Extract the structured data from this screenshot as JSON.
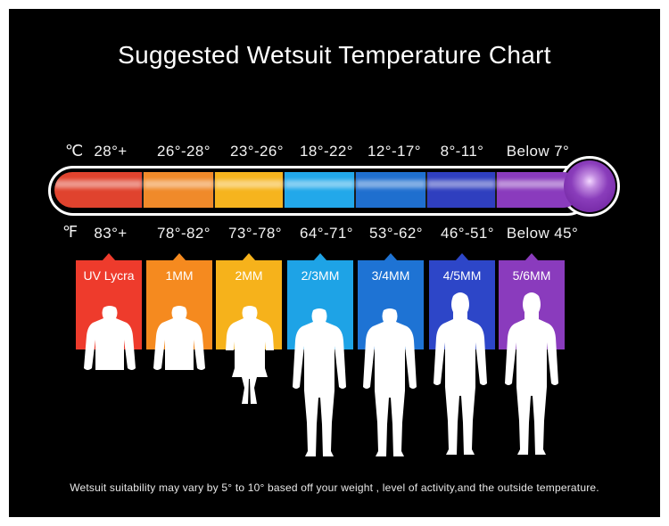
{
  "title": "Suggested Wetsuit Temperature Chart",
  "celsius_unit": "℃",
  "fahrenheit_unit": "℉",
  "zones": [
    {
      "celsius": "28°+",
      "fahrenheit": "83°+",
      "suit": "UV Lycra",
      "color": "#ee3b2c",
      "tube": "#e0432e"
    },
    {
      "celsius": "26°-28°",
      "fahrenheit": "78°-82°",
      "suit": "1MM",
      "color": "#f58a1f",
      "tube": "#f08a2a"
    },
    {
      "celsius": "23°-26°",
      "fahrenheit": "73°-78°",
      "suit": "2MM",
      "color": "#f6b21b",
      "tube": "#f6b41e"
    },
    {
      "celsius": "18°-22°",
      "fahrenheit": "64°-71°",
      "suit": "2/3MM",
      "color": "#1ea3e6",
      "tube": "#22a8ea"
    },
    {
      "celsius": "12°-17°",
      "fahrenheit": "53°-62°",
      "suit": "3/4MM",
      "color": "#1e73d4",
      "tube": "#1f6fcf"
    },
    {
      "celsius": "8°-11°",
      "fahrenheit": "46°-51°",
      "suit": "4/5MM",
      "color": "#2d46c8",
      "tube": "#2f3fbf"
    },
    {
      "celsius": "Below 7°",
      "fahrenheit": "Below 45°",
      "suit": "5/6MM",
      "color": "#8a3bbd",
      "tube": "#8a3bbd"
    }
  ],
  "footnote": "Wetsuit suitability may vary by 5° to 10° based off your weight , level of activity,and the outside temperature."
}
